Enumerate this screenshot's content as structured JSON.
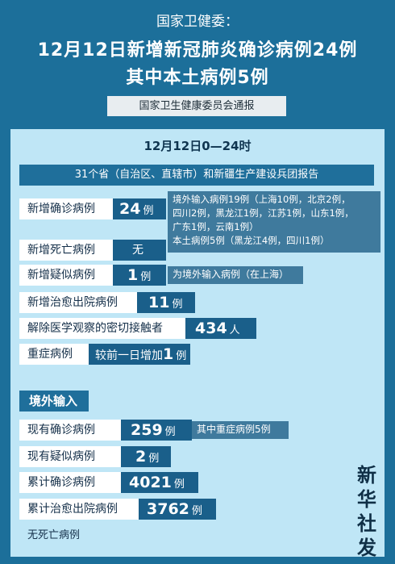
{
  "header": {
    "agency": "国家卫健委：",
    "title_line1": "12月12日新增新冠肺炎确诊病例24例",
    "title_line2": "其中本土病例5例",
    "source": "国家卫生健康委员会通报"
  },
  "panel": {
    "date_range": "12月12日0—24时",
    "subheading": "31个省（自治区、直辖市）和新疆生产建设兵团报告",
    "new_confirmed": {
      "label": "新增确诊病例",
      "value": "24",
      "unit": "例",
      "note_line1": "境外输入病例19例（上海10例，北京2例，",
      "note_line2": "四川2例，黑龙江1例，江苏1例，山东1例，",
      "note_line3": "广东1例，云南1例）",
      "note_line4": "本土病例5例（黑龙江4例，四川1例）"
    },
    "new_deaths": {
      "label": "新增死亡病例",
      "value": "无"
    },
    "new_suspected": {
      "label": "新增疑似病例",
      "value": "1",
      "unit": "例",
      "note": "为境外输入病例（在上海）"
    },
    "new_recovered": {
      "label": "新增治愈出院病例",
      "value": "11",
      "unit": "例"
    },
    "released_contacts": {
      "label": "解除医学观察的密切接触者",
      "value": "434",
      "unit": "人"
    },
    "severe": {
      "label": "重症病例",
      "prefix": "较前一日增加",
      "value": "1",
      "unit": "例"
    }
  },
  "imported": {
    "section_title": "境外输入",
    "current_confirmed": {
      "label": "现有确诊病例",
      "value": "259",
      "unit": "例",
      "note": "其中重症病例5例"
    },
    "current_suspected": {
      "label": "现有疑似病例",
      "value": "2",
      "unit": "例"
    },
    "cumulative_confirmed": {
      "label": "累计确诊病例",
      "value": "4021",
      "unit": "例"
    },
    "cumulative_recovered": {
      "label": "累计治愈出院病例",
      "value": "3762",
      "unit": "例"
    },
    "no_deaths": "无死亡病例"
  },
  "stamp": {
    "c1": "新",
    "c2": "华",
    "c3": "社",
    "c4": "发"
  }
}
